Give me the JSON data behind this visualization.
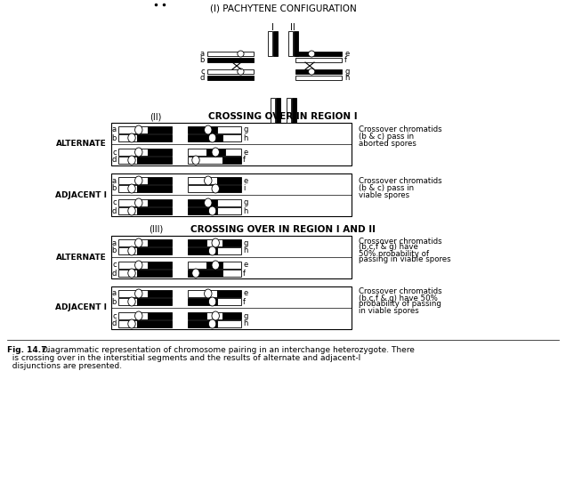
{
  "title": "(I) PACHYTENE CONFIGURATION",
  "section2_label": "(II)",
  "section2_title": "CROSSING OVER IN REGION I",
  "section3_label": "(III)",
  "section3_title": "CROSSING OVER IN REGION I AND II",
  "fig_caption_bold": "Fig. 14.7.",
  "fig_caption_rest": "  Diagrammatic representation of chromosome pairing in an interchange heterozygote. There\n  is crossing over in the interstitial segments and the results of alternate and adjacent-I\n  disjunctions are presented.",
  "bg_color": "#ffffff",
  "text_color": "#000000"
}
